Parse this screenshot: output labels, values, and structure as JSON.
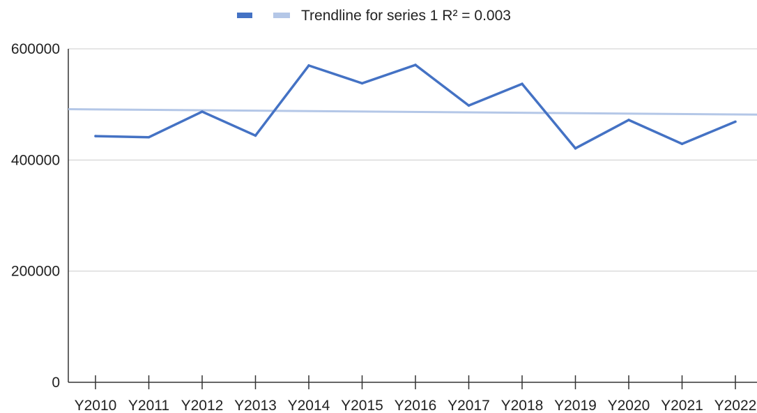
{
  "chart_data": {
    "type": "line",
    "categories": [
      "Y2010",
      "Y2011",
      "Y2012",
      "Y2013",
      "Y2014",
      "Y2015",
      "Y2016",
      "Y2017",
      "Y2018",
      "Y2019",
      "Y2020",
      "Y2021",
      "Y2022"
    ],
    "series": [
      {
        "values": [
          443000,
          441000,
          487000,
          444000,
          570000,
          538000,
          571000,
          498000,
          537000,
          421000,
          472000,
          429000,
          469000
        ],
        "color": "#4472c4"
      }
    ],
    "trendline": {
      "label": "Trendline for series 1 R² = 0.003",
      "start": 491000,
      "end": 482000,
      "color": "#b4c7e7"
    },
    "title": "",
    "xlabel": "",
    "ylabel": "",
    "ylim": [
      0,
      600000
    ],
    "yticks": [
      "0",
      "200000",
      "400000",
      "600000"
    ],
    "grid": true,
    "legend_position": "top-center"
  }
}
